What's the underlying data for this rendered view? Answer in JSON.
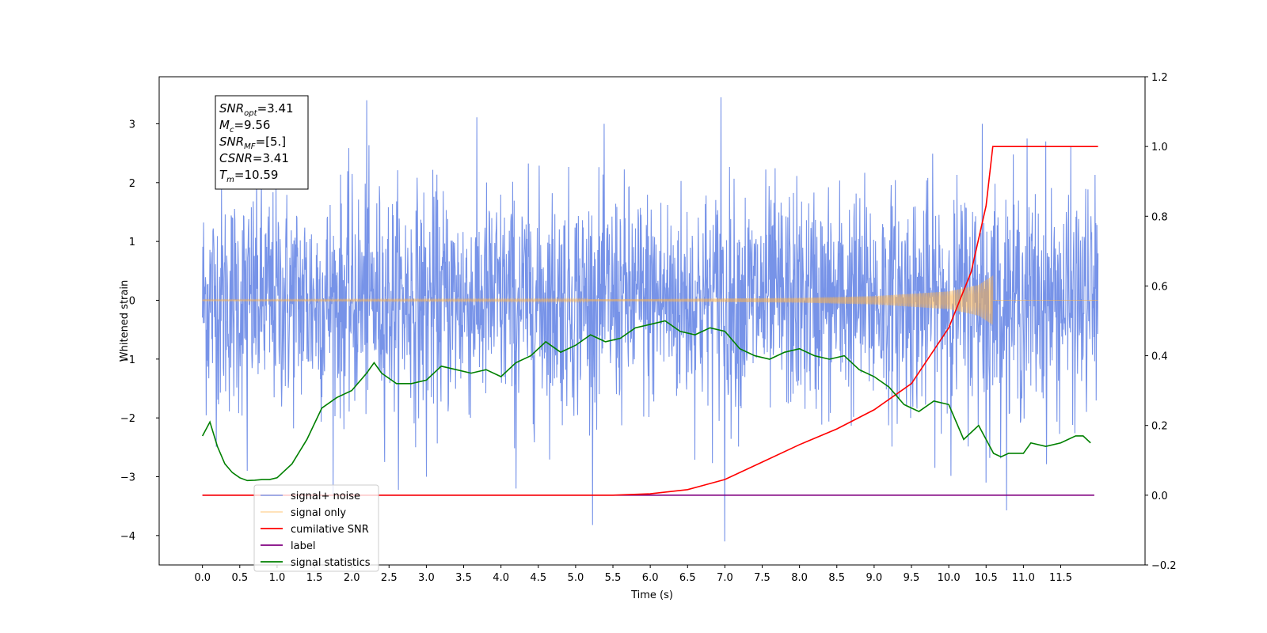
{
  "chart_data": {
    "type": "line",
    "xlabel": "Time (s)",
    "ylabel": "Whitened strain",
    "xlim": [
      -0.58,
      12.63
    ],
    "ylim": [
      -4.5,
      3.8
    ],
    "y2lim": [
      -0.2,
      1.2
    ],
    "grid": false,
    "legend_position": "lower-left",
    "x_ticks": [
      "0.0",
      "0.5",
      "1.0",
      "1.5",
      "2.0",
      "2.5",
      "3.0",
      "3.5",
      "4.0",
      "4.5",
      "5.0",
      "5.5",
      "6.0",
      "6.5",
      "7.0",
      "7.5",
      "8.0",
      "8.5",
      "9.0",
      "9.5",
      "10.0",
      "10.5",
      "11.0",
      "11.5"
    ],
    "y_ticks": [
      "3",
      "2",
      "1",
      "0",
      "−1",
      "−2",
      "−3",
      "−4"
    ],
    "y2_ticks": [
      "1.2",
      "1.0",
      "0.8",
      "0.6",
      "0.4",
      "0.2",
      "0.0",
      "−0.2"
    ],
    "annotation": {
      "snr_opt": "3.41",
      "mc": "9.56",
      "snr_mf": "[5.]",
      "csnr": "3.41",
      "tm": "10.59"
    },
    "series": [
      {
        "name": "signal+ noise",
        "color": "#6b8ae6",
        "axis": "left",
        "description_stats": {
          "approx_std": 0.95,
          "x_range": [
            0.0,
            12.0
          ]
        },
        "peaks": [
          [
            0.6,
            -2.9
          ],
          [
            2.2,
            3.4
          ],
          [
            3.0,
            -3.0
          ],
          [
            4.2,
            -3.2
          ],
          [
            6.95,
            3.45
          ],
          [
            7.0,
            -4.1
          ],
          [
            10.45,
            3.0
          ],
          [
            10.5,
            -3.1
          ],
          [
            11.05,
            2.75
          ],
          [
            11.3,
            2.7
          ]
        ]
      },
      {
        "name": "signal only",
        "color": "#ffb347",
        "axis": "left",
        "x": [
          0.0,
          6.0,
          8.0,
          9.0,
          10.0,
          10.4,
          10.59
        ],
        "y_envelope": [
          0.01,
          0.02,
          0.04,
          0.07,
          0.15,
          0.26,
          0.42
        ]
      },
      {
        "name": "cumilative SNR",
        "color": "#ff0000",
        "axis": "right",
        "x": [
          0.0,
          5.5,
          6.0,
          6.5,
          7.0,
          7.5,
          8.0,
          8.5,
          9.0,
          9.5,
          10.0,
          10.3,
          10.5,
          10.59,
          12.0
        ],
        "values": [
          0.0,
          0.0,
          0.004,
          0.016,
          0.045,
          0.095,
          0.145,
          0.19,
          0.245,
          0.32,
          0.48,
          0.64,
          0.83,
          1.0,
          1.0
        ]
      },
      {
        "name": "label",
        "color": "#800080",
        "axis": "right",
        "x": [
          0.0,
          11.95
        ],
        "values": [
          0.0,
          0.0
        ]
      },
      {
        "name": "signal statistics",
        "color": "#008000",
        "axis": "right",
        "x": [
          0.0,
          0.1,
          0.2,
          0.3,
          0.4,
          0.5,
          0.6,
          0.7,
          0.8,
          0.9,
          1.0,
          1.2,
          1.4,
          1.6,
          1.8,
          2.0,
          2.2,
          2.3,
          2.4,
          2.6,
          2.8,
          3.0,
          3.2,
          3.4,
          3.6,
          3.8,
          4.0,
          4.2,
          4.4,
          4.6,
          4.8,
          5.0,
          5.2,
          5.4,
          5.6,
          5.8,
          6.0,
          6.2,
          6.4,
          6.6,
          6.8,
          7.0,
          7.2,
          7.4,
          7.6,
          7.8,
          8.0,
          8.2,
          8.4,
          8.6,
          8.8,
          9.0,
          9.2,
          9.4,
          9.6,
          9.8,
          10.0,
          10.2,
          10.4,
          10.6,
          10.7,
          10.8,
          11.0,
          11.1,
          11.3,
          11.5,
          11.7,
          11.8,
          11.9
        ],
        "values": [
          0.17,
          0.21,
          0.14,
          0.09,
          0.065,
          0.05,
          0.042,
          0.043,
          0.045,
          0.045,
          0.05,
          0.09,
          0.16,
          0.25,
          0.28,
          0.3,
          0.35,
          0.38,
          0.35,
          0.32,
          0.32,
          0.33,
          0.37,
          0.36,
          0.35,
          0.36,
          0.34,
          0.38,
          0.4,
          0.44,
          0.41,
          0.43,
          0.46,
          0.44,
          0.45,
          0.48,
          0.49,
          0.5,
          0.47,
          0.46,
          0.48,
          0.47,
          0.42,
          0.4,
          0.39,
          0.41,
          0.42,
          0.4,
          0.39,
          0.4,
          0.36,
          0.34,
          0.31,
          0.26,
          0.24,
          0.27,
          0.26,
          0.16,
          0.2,
          0.12,
          0.11,
          0.12,
          0.12,
          0.15,
          0.14,
          0.15,
          0.17,
          0.17,
          0.15
        ]
      }
    ]
  }
}
